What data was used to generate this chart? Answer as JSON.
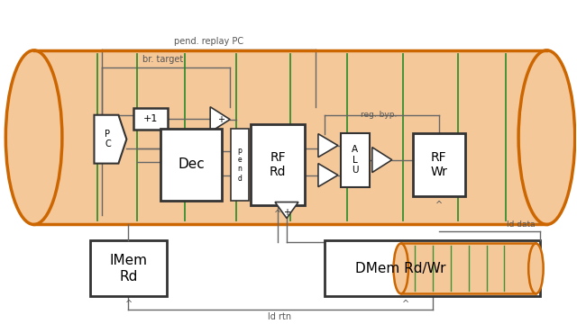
{
  "bg_color": "#ffffff",
  "pipeline_fill": "#f5c89a",
  "pipeline_edge": "#cc6600",
  "stage_line_color": "#228822",
  "box_edge": "#333333",
  "box_fill": "#ffffff",
  "wire_color": "#666666",
  "dmem_fill": "#f5c89a",
  "dmem_edge": "#cc6600",
  "labels": {
    "pend_replay": "pend. replay PC",
    "br_target": "br. target",
    "reg_byp": "reg. byp.",
    "ld_data": "ld data",
    "ld_rtn": "ld rtn"
  }
}
